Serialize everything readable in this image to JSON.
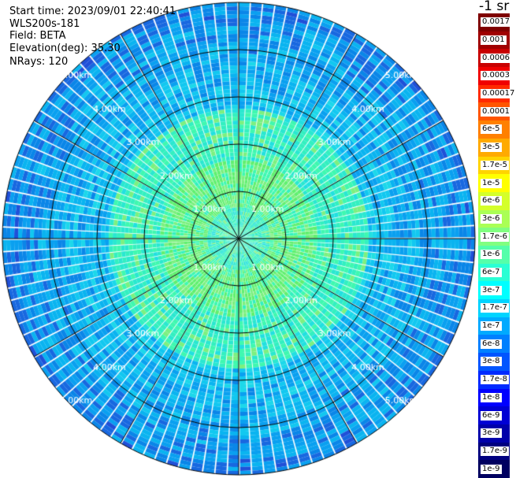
{
  "header": {
    "start_time": "Start time: 2023/09/01 22:40:41",
    "instrument": "WLS200s-181",
    "field": "Field: BETA",
    "elevation": "Elevation(deg): 35.30",
    "nrays": "NRays: 120"
  },
  "colorbar": {
    "unit": "-1 sr",
    "levels": [
      {
        "label": "0.0017",
        "color": "#7f0000"
      },
      {
        "label": "0.001",
        "color": "#a00000"
      },
      {
        "label": "0.0006",
        "color": "#c80000"
      },
      {
        "label": "0.0003",
        "color": "#f00000"
      },
      {
        "label": "0.00017",
        "color": "#ff2a00"
      },
      {
        "label": "0.0001",
        "color": "#ff5500"
      },
      {
        "label": "6e-5",
        "color": "#ff8000"
      },
      {
        "label": "3e-5",
        "color": "#ffaa00"
      },
      {
        "label": "1.7e-5",
        "color": "#ffd400"
      },
      {
        "label": "1e-5",
        "color": "#ffff00"
      },
      {
        "label": "6e-6",
        "color": "#d4ff2a"
      },
      {
        "label": "3e-6",
        "color": "#aaff55"
      },
      {
        "label": "1.7e-6",
        "color": "#80ff80"
      },
      {
        "label": "1e-6",
        "color": "#55ffaa"
      },
      {
        "label": "6e-7",
        "color": "#2affd4"
      },
      {
        "label": "3e-7",
        "color": "#00ffff"
      },
      {
        "label": "1.7e-7",
        "color": "#00d4ff"
      },
      {
        "label": "1e-7",
        "color": "#00aaff"
      },
      {
        "label": "6e-8",
        "color": "#0080ff"
      },
      {
        "label": "3e-8",
        "color": "#0055ff"
      },
      {
        "label": "1.7e-8",
        "color": "#002aff"
      },
      {
        "label": "1e-8",
        "color": "#0000ff"
      },
      {
        "label": "6e-9",
        "color": "#0000d4"
      },
      {
        "label": "3e-9",
        "color": "#0000aa"
      },
      {
        "label": "1.7e-9",
        "color": "#000080"
      },
      {
        "label": "1e-9",
        "color": "#000060"
      }
    ]
  },
  "ppi": {
    "rays": 120,
    "max_range_km": 5.0,
    "ring_labels": [
      "1.00km",
      "2.00km",
      "3.00km",
      "4.00km",
      "5.00km"
    ],
    "spoke_count": 12,
    "label_color": "#ffffff"
  }
}
